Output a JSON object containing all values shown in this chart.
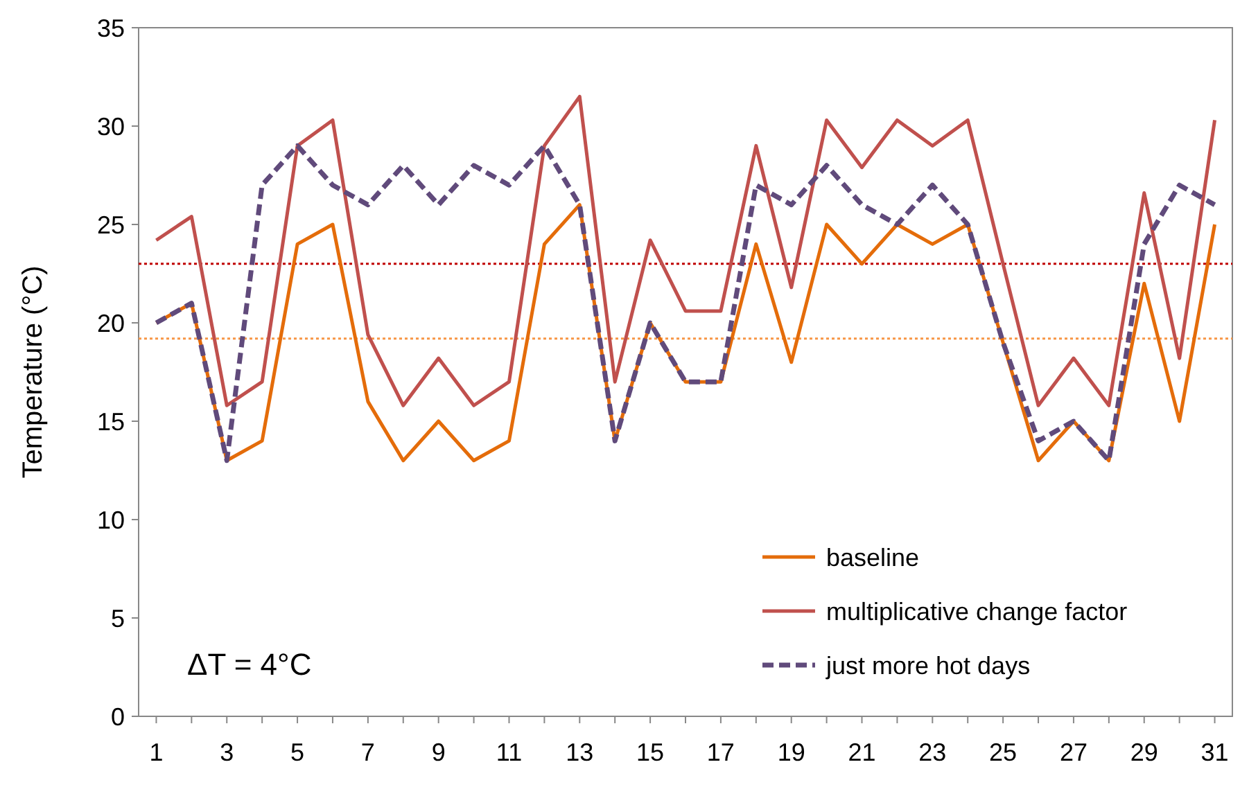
{
  "chart_data": {
    "type": "line",
    "ylabel": "Temperature (°C)",
    "x": [
      1,
      2,
      3,
      4,
      5,
      6,
      7,
      8,
      9,
      10,
      11,
      12,
      13,
      14,
      15,
      16,
      17,
      18,
      19,
      20,
      21,
      22,
      23,
      24,
      25,
      26,
      27,
      28,
      29,
      30,
      31
    ],
    "xlim": [
      0.5,
      31.5
    ],
    "xticks": [
      1,
      {
        "value": 2,
        "label": null
      },
      3,
      {
        "value": 4,
        "label": null
      },
      5,
      {
        "value": 6,
        "label": null
      },
      7,
      {
        "value": 8,
        "label": null
      },
      9,
      {
        "value": 10,
        "label": null
      },
      11,
      {
        "value": 12,
        "label": null
      },
      13,
      {
        "value": 14,
        "label": null
      },
      15,
      {
        "value": 16,
        "label": null
      },
      17,
      {
        "value": 18,
        "label": null
      },
      19,
      {
        "value": 20,
        "label": null
      },
      21,
      {
        "value": 22,
        "label": null
      },
      23,
      {
        "value": 24,
        "label": null
      },
      25,
      {
        "value": 26,
        "label": null
      },
      27,
      {
        "value": 28,
        "label": null
      },
      29,
      {
        "value": 30,
        "label": null
      },
      31
    ],
    "ylim": [
      0,
      35
    ],
    "yticks": [
      0,
      5,
      10,
      15,
      20,
      25,
      30,
      35
    ],
    "series": [
      {
        "name": "baseline",
        "color": "#e46c0a",
        "line_style": "solid",
        "values": [
          20,
          21,
          13,
          14,
          24,
          25,
          16,
          13,
          15,
          13,
          14,
          24,
          26,
          14,
          20,
          17,
          17,
          24,
          18,
          25,
          23,
          25,
          24,
          25,
          19,
          13,
          15,
          13,
          22,
          15,
          25
        ]
      },
      {
        "name": "multiplicative change factor",
        "color": "#c0504d",
        "line_style": "solid",
        "values": [
          24.2,
          25.4,
          15.8,
          17,
          29,
          30.3,
          19.4,
          15.8,
          18.2,
          15.8,
          17,
          29,
          31.5,
          17,
          24.2,
          20.6,
          20.6,
          29,
          21.8,
          30.3,
          27.9,
          30.3,
          29,
          30.3,
          23,
          15.8,
          18.2,
          15.8,
          26.6,
          18.2,
          30.3
        ]
      },
      {
        "name": "just more hot days",
        "color": "#604a7b",
        "line_style": "dashed",
        "values": [
          20,
          21,
          13,
          27,
          29,
          27,
          26,
          28,
          26,
          28,
          27,
          29,
          26,
          14,
          20,
          17,
          17,
          27,
          26,
          28,
          26,
          25,
          27,
          25,
          19,
          14,
          15,
          13,
          24,
          27,
          26
        ]
      }
    ],
    "ref_lines": [
      {
        "axis": "y",
        "value": 23,
        "color": "#c00000",
        "line_style": "dotted"
      },
      {
        "axis": "y",
        "value": 19.2,
        "color": "#f79646",
        "line_style": "dotted"
      }
    ],
    "annotations": [
      "ΔT = 4°C"
    ],
    "legend": "bottom right",
    "grid": false,
    "marker": "none"
  }
}
